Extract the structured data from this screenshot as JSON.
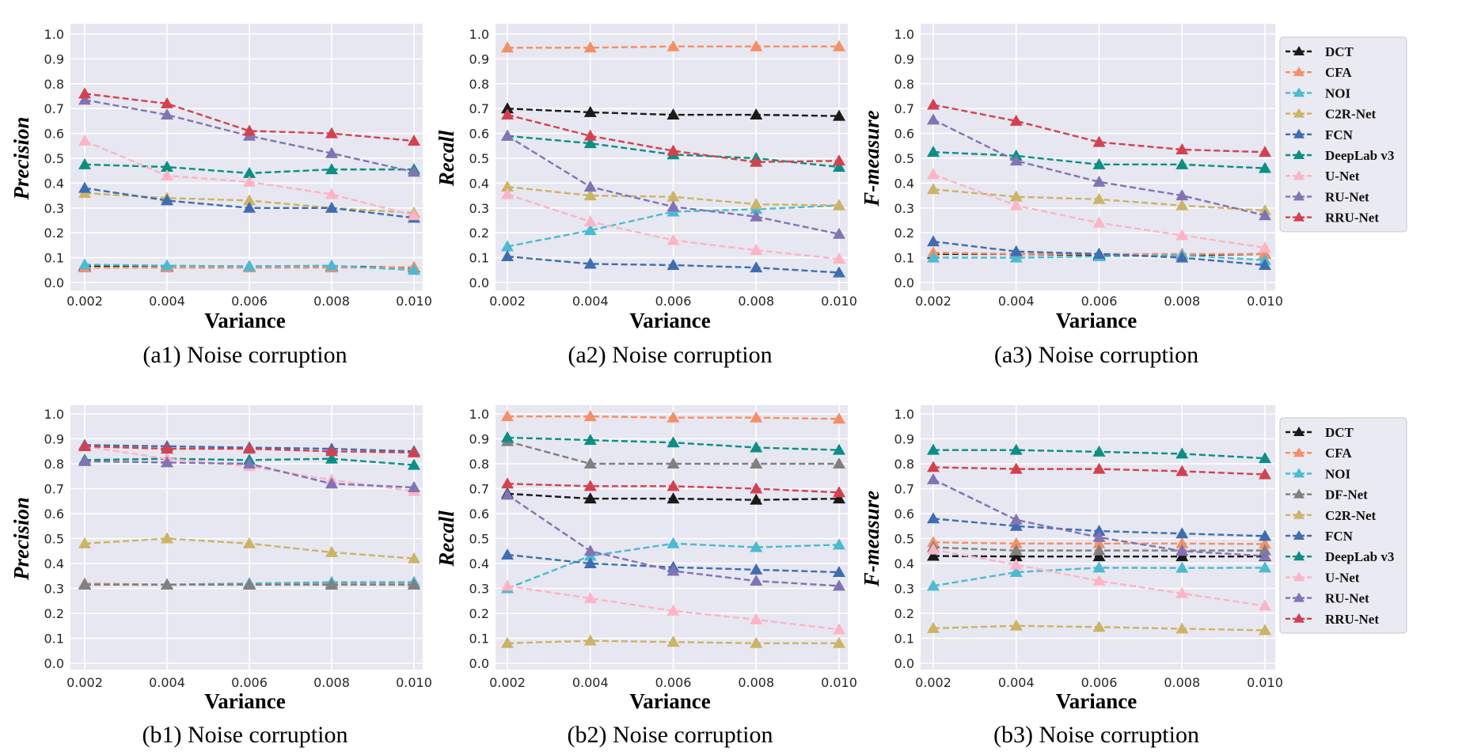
{
  "chart_data": [
    {
      "type": "line",
      "caption": "(a1) Noise corruption",
      "xlabel": "Variance",
      "ylabel": "Precision",
      "x": [
        "0.002",
        "0.004",
        "0.006",
        "0.008",
        "0.010"
      ],
      "yticks": [
        "0.0",
        "0.1",
        "0.2",
        "0.3",
        "0.4",
        "0.5",
        "0.6",
        "0.7",
        "0.8",
        "0.9",
        "1.0"
      ],
      "ylim": [
        0,
        1
      ],
      "grid": true,
      "legend": false,
      "series": [
        {
          "name": "DCT",
          "color": "#1a1a1a",
          "values": [
            0.065,
            0.065,
            0.065,
            0.065,
            0.06
          ]
        },
        {
          "name": "CFA",
          "color": "#f68f66",
          "values": [
            0.06,
            0.06,
            0.06,
            0.06,
            0.062
          ]
        },
        {
          "name": "NOI",
          "color": "#4bbad3",
          "values": [
            0.072,
            0.068,
            0.065,
            0.068,
            0.05
          ]
        },
        {
          "name": "C2R-Net",
          "color": "#ccb465",
          "values": [
            0.36,
            0.34,
            0.33,
            0.3,
            0.28
          ]
        },
        {
          "name": "FCN",
          "color": "#3f6db3",
          "values": [
            0.38,
            0.33,
            0.3,
            0.3,
            0.26
          ]
        },
        {
          "name": "DeepLab v3",
          "color": "#0a8f84",
          "values": [
            0.475,
            0.465,
            0.44,
            0.455,
            0.455
          ]
        },
        {
          "name": "U-Net",
          "color": "#fdb4c4",
          "values": [
            0.57,
            0.43,
            0.405,
            0.355,
            0.27
          ]
        },
        {
          "name": "RU-Net",
          "color": "#8273b5",
          "values": [
            0.735,
            0.675,
            0.59,
            0.52,
            0.445
          ]
        },
        {
          "name": "RRU-Net",
          "color": "#d6404e",
          "values": [
            0.76,
            0.72,
            0.61,
            0.6,
            0.57
          ]
        }
      ]
    },
    {
      "type": "line",
      "caption": "(a2) Noise corruption",
      "xlabel": "Variance",
      "ylabel": "Recall",
      "x": [
        "0.002",
        "0.004",
        "0.006",
        "0.008",
        "0.010"
      ],
      "yticks": [
        "0.0",
        "0.1",
        "0.2",
        "0.3",
        "0.4",
        "0.5",
        "0.6",
        "0.7",
        "0.8",
        "0.9",
        "1.0"
      ],
      "ylim": [
        0,
        1
      ],
      "grid": true,
      "legend": false,
      "series": [
        {
          "name": "DCT",
          "color": "#1a1a1a",
          "values": [
            0.7,
            0.685,
            0.675,
            0.675,
            0.67
          ]
        },
        {
          "name": "CFA",
          "color": "#f68f66",
          "values": [
            0.945,
            0.945,
            0.95,
            0.95,
            0.95
          ]
        },
        {
          "name": "NOI",
          "color": "#4bbad3",
          "values": [
            0.145,
            0.21,
            0.285,
            0.295,
            0.31
          ]
        },
        {
          "name": "C2R-Net",
          "color": "#ccb465",
          "values": [
            0.385,
            0.35,
            0.345,
            0.315,
            0.31
          ]
        },
        {
          "name": "FCN",
          "color": "#3f6db3",
          "values": [
            0.105,
            0.075,
            0.07,
            0.06,
            0.04
          ]
        },
        {
          "name": "DeepLab v3",
          "color": "#0a8f84",
          "values": [
            0.59,
            0.56,
            0.515,
            0.5,
            0.465
          ]
        },
        {
          "name": "U-Net",
          "color": "#fdb4c4",
          "values": [
            0.355,
            0.245,
            0.17,
            0.13,
            0.095
          ]
        },
        {
          "name": "RU-Net",
          "color": "#8273b5",
          "values": [
            0.59,
            0.385,
            0.305,
            0.265,
            0.195
          ]
        },
        {
          "name": "RRU-Net",
          "color": "#d6404e",
          "values": [
            0.675,
            0.59,
            0.53,
            0.485,
            0.49
          ]
        }
      ]
    },
    {
      "type": "line",
      "caption": "(a3) Noise corruption",
      "xlabel": "Variance",
      "ylabel": "F-measure",
      "x": [
        "0.002",
        "0.004",
        "0.006",
        "0.008",
        "0.010"
      ],
      "yticks": [
        "0.0",
        "0.1",
        "0.2",
        "0.3",
        "0.4",
        "0.5",
        "0.6",
        "0.7",
        "0.8",
        "0.9",
        "1.0"
      ],
      "ylim": [
        0,
        1
      ],
      "grid": true,
      "legend": true,
      "series": [
        {
          "name": "DCT",
          "color": "#1a1a1a",
          "values": [
            0.115,
            0.115,
            0.11,
            0.11,
            0.115
          ]
        },
        {
          "name": "CFA",
          "color": "#f68f66",
          "values": [
            0.12,
            0.115,
            0.115,
            0.115,
            0.115
          ]
        },
        {
          "name": "NOI",
          "color": "#4bbad3",
          "values": [
            0.1,
            0.1,
            0.105,
            0.11,
            0.09
          ]
        },
        {
          "name": "C2R-Net",
          "color": "#ccb465",
          "values": [
            0.375,
            0.345,
            0.335,
            0.31,
            0.29
          ]
        },
        {
          "name": "FCN",
          "color": "#3f6db3",
          "values": [
            0.165,
            0.125,
            0.115,
            0.1,
            0.07
          ]
        },
        {
          "name": "DeepLab v3",
          "color": "#0a8f84",
          "values": [
            0.525,
            0.51,
            0.475,
            0.475,
            0.46
          ]
        },
        {
          "name": "U-Net",
          "color": "#fdb4c4",
          "values": [
            0.435,
            0.31,
            0.24,
            0.19,
            0.14
          ]
        },
        {
          "name": "RU-Net",
          "color": "#8273b5",
          "values": [
            0.655,
            0.49,
            0.405,
            0.35,
            0.27
          ]
        },
        {
          "name": "RRU-Net",
          "color": "#d6404e",
          "values": [
            0.715,
            0.65,
            0.565,
            0.535,
            0.525
          ]
        }
      ]
    },
    {
      "type": "line",
      "caption": "(b1) Noise corruption",
      "xlabel": "Variance",
      "ylabel": "Precision",
      "x": [
        "0.002",
        "0.004",
        "0.006",
        "0.008",
        "0.010"
      ],
      "yticks": [
        "0.0",
        "0.1",
        "0.2",
        "0.3",
        "0.4",
        "0.5",
        "0.6",
        "0.7",
        "0.8",
        "0.9",
        "1.0"
      ],
      "ylim": [
        0,
        1
      ],
      "grid": true,
      "legend": false,
      "series": [
        {
          "name": "DCT",
          "color": "#1a1a1a",
          "values": [
            0.315,
            0.315,
            0.315,
            0.315,
            0.315
          ]
        },
        {
          "name": "CFA",
          "color": "#f68f66",
          "values": [
            0.32,
            0.315,
            0.32,
            0.32,
            0.32
          ]
        },
        {
          "name": "NOI",
          "color": "#4bbad3",
          "values": [
            0.315,
            0.315,
            0.32,
            0.325,
            0.325
          ]
        },
        {
          "name": "DF-Net",
          "color": "#808080",
          "values": [
            0.315,
            0.315,
            0.315,
            0.315,
            0.315
          ]
        },
        {
          "name": "C2R-Net",
          "color": "#ccb465",
          "values": [
            0.48,
            0.5,
            0.48,
            0.445,
            0.42
          ]
        },
        {
          "name": "FCN",
          "color": "#3f6db3",
          "values": [
            0.875,
            0.87,
            0.865,
            0.86,
            0.85
          ]
        },
        {
          "name": "DeepLab v3",
          "color": "#0a8f84",
          "values": [
            0.815,
            0.82,
            0.815,
            0.82,
            0.795
          ]
        },
        {
          "name": "U-Net",
          "color": "#fdb4c4",
          "values": [
            0.87,
            0.82,
            0.79,
            0.735,
            0.69
          ]
        },
        {
          "name": "RU-Net",
          "color": "#8273b5",
          "values": [
            0.81,
            0.805,
            0.8,
            0.72,
            0.705
          ]
        },
        {
          "name": "RRU-Net",
          "color": "#d6404e",
          "values": [
            0.87,
            0.86,
            0.86,
            0.85,
            0.845
          ]
        }
      ]
    },
    {
      "type": "line",
      "caption": "(b2) Noise corruption",
      "xlabel": "Variance",
      "ylabel": "Recall",
      "x": [
        "0.002",
        "0.004",
        "0.006",
        "0.008",
        "0.010"
      ],
      "yticks": [
        "0.0",
        "0.1",
        "0.2",
        "0.3",
        "0.4",
        "0.5",
        "0.6",
        "0.7",
        "0.8",
        "0.9",
        "1.0"
      ],
      "ylim": [
        0,
        1
      ],
      "grid": true,
      "legend": false,
      "series": [
        {
          "name": "DCT",
          "color": "#1a1a1a",
          "values": [
            0.68,
            0.66,
            0.66,
            0.655,
            0.66
          ]
        },
        {
          "name": "CFA",
          "color": "#f68f66",
          "values": [
            0.99,
            0.99,
            0.985,
            0.985,
            0.98
          ]
        },
        {
          "name": "NOI",
          "color": "#4bbad3",
          "values": [
            0.3,
            0.43,
            0.48,
            0.465,
            0.475
          ]
        },
        {
          "name": "DF-Net",
          "color": "#808080",
          "values": [
            0.89,
            0.8,
            0.8,
            0.8,
            0.8
          ]
        },
        {
          "name": "C2R-Net",
          "color": "#ccb465",
          "values": [
            0.08,
            0.09,
            0.085,
            0.08,
            0.08
          ]
        },
        {
          "name": "FCN",
          "color": "#3f6db3",
          "values": [
            0.435,
            0.4,
            0.385,
            0.375,
            0.365
          ]
        },
        {
          "name": "DeepLab v3",
          "color": "#0a8f84",
          "values": [
            0.905,
            0.895,
            0.885,
            0.865,
            0.855
          ]
        },
        {
          "name": "U-Net",
          "color": "#fdb4c4",
          "values": [
            0.31,
            0.26,
            0.21,
            0.175,
            0.135
          ]
        },
        {
          "name": "RU-Net",
          "color": "#8273b5",
          "values": [
            0.675,
            0.45,
            0.37,
            0.33,
            0.31
          ]
        },
        {
          "name": "RRU-Net",
          "color": "#d6404e",
          "values": [
            0.72,
            0.71,
            0.71,
            0.7,
            0.685
          ]
        }
      ]
    },
    {
      "type": "line",
      "caption": "(b3) Noise corruption",
      "xlabel": "Variance",
      "ylabel": "F-measure",
      "x": [
        "0.002",
        "0.004",
        "0.006",
        "0.008",
        "0.010"
      ],
      "yticks": [
        "0.0",
        "0.1",
        "0.2",
        "0.3",
        "0.4",
        "0.5",
        "0.6",
        "0.7",
        "0.8",
        "0.9",
        "1.0"
      ],
      "ylim": [
        0,
        1
      ],
      "grid": true,
      "legend": true,
      "series": [
        {
          "name": "DCT",
          "color": "#1a1a1a",
          "values": [
            0.43,
            0.428,
            0.428,
            0.428,
            0.428
          ]
        },
        {
          "name": "CFA",
          "color": "#f68f66",
          "values": [
            0.485,
            0.48,
            0.48,
            0.48,
            0.478
          ]
        },
        {
          "name": "NOI",
          "color": "#4bbad3",
          "values": [
            0.31,
            0.365,
            0.383,
            0.382,
            0.383
          ]
        },
        {
          "name": "DF-Net",
          "color": "#808080",
          "values": [
            0.465,
            0.452,
            0.452,
            0.452,
            0.452
          ]
        },
        {
          "name": "C2R-Net",
          "color": "#ccb465",
          "values": [
            0.14,
            0.15,
            0.145,
            0.138,
            0.132
          ]
        },
        {
          "name": "FCN",
          "color": "#3f6db3",
          "values": [
            0.58,
            0.55,
            0.53,
            0.52,
            0.51
          ]
        },
        {
          "name": "DeepLab v3",
          "color": "#0a8f84",
          "values": [
            0.855,
            0.855,
            0.848,
            0.84,
            0.822
          ]
        },
        {
          "name": "U-Net",
          "color": "#fdb4c4",
          "values": [
            0.455,
            0.395,
            0.33,
            0.28,
            0.23
          ]
        },
        {
          "name": "RU-Net",
          "color": "#8273b5",
          "values": [
            0.737,
            0.575,
            0.505,
            0.45,
            0.43
          ]
        },
        {
          "name": "RRU-Net",
          "color": "#d6404e",
          "values": [
            0.786,
            0.779,
            0.779,
            0.77,
            0.757
          ]
        }
      ]
    }
  ]
}
